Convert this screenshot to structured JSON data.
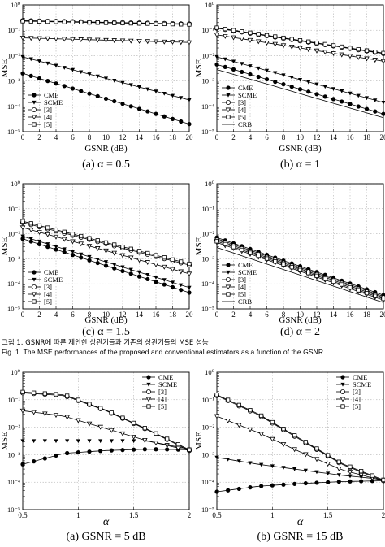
{
  "captions": {
    "fig1_kr": "그림 1. GSNR에 따른 제안한 상관기들과 기존의 상관기들의 MSE 성능",
    "fig1_en": "Fig. 1. The MSE performances of the proposed and conventional estimators as a function of the GSNR"
  },
  "style": {
    "line_color": "#000000",
    "grid_color": "#888888",
    "markers": {
      "CME": "filled-circle",
      "SCME": "filled-triangle-down",
      "[3]": "open-circle",
      "[4]": "open-triangle-down",
      "[5]": "open-square",
      "CRB": "none"
    }
  },
  "chart_data": [
    {
      "type": "line",
      "title": "(a) α = 0.5",
      "xlabel": "GSNR (dB)",
      "ylabel": "MSE",
      "yscale": "log",
      "x": [
        0,
        1,
        2,
        3,
        4,
        5,
        6,
        7,
        8,
        9,
        10,
        11,
        12,
        13,
        14,
        15,
        16,
        17,
        18,
        19,
        20
      ],
      "xticks": [
        0,
        2,
        4,
        6,
        8,
        10,
        12,
        14,
        16,
        18,
        20
      ],
      "xticklabels": [
        "0",
        "2",
        "4",
        "6",
        "8",
        "10",
        "12",
        "14",
        "16",
        "18",
        "20"
      ],
      "xlim": [
        0,
        20
      ],
      "ylim_exp": [
        -5,
        0
      ],
      "yticklabels": [
        "10⁰",
        "10⁻¹",
        "10⁻²",
        "10⁻³",
        "10⁻⁴",
        "10⁻⁵"
      ],
      "grid": true,
      "legend": "lower-left",
      "series": [
        {
          "name": "CME",
          "y_log10": [
            -2.7,
            -4.7
          ]
        },
        {
          "name": "SCME",
          "y_log10": [
            -2.05,
            -3.75
          ]
        },
        {
          "name": "[3]",
          "y_log10": [
            -0.62,
            -0.75
          ]
        },
        {
          "name": "[4]",
          "y_log10": [
            -1.3,
            -1.48
          ]
        },
        {
          "name": "[5]",
          "y_log10": [
            -0.64,
            -0.77
          ]
        }
      ]
    },
    {
      "type": "line",
      "title": "(b) α = 1",
      "xlabel": "GSNR (dB)",
      "ylabel": "MSE",
      "yscale": "log",
      "x": [
        0,
        1,
        2,
        3,
        4,
        5,
        6,
        7,
        8,
        9,
        10,
        11,
        12,
        13,
        14,
        15,
        16,
        17,
        18,
        19,
        20
      ],
      "xticks": [
        0,
        2,
        4,
        6,
        8,
        10,
        12,
        14,
        16,
        18,
        20
      ],
      "xticklabels": [
        "0",
        "2",
        "4",
        "6",
        "8",
        "10",
        "12",
        "14",
        "16",
        "18",
        "20"
      ],
      "xlim": [
        0,
        20
      ],
      "ylim_exp": [
        -5,
        0
      ],
      "yticklabels": [
        "10⁰",
        "10⁻¹",
        "10⁻²",
        "10⁻³",
        "10⁻⁴",
        "10⁻⁵"
      ],
      "grid": true,
      "legend": "lower-left",
      "series": [
        {
          "name": "CME",
          "y_log10": [
            -2.35,
            -4.3
          ]
        },
        {
          "name": "SCME",
          "y_log10": [
            -2.05,
            -3.85
          ]
        },
        {
          "name": "[3]",
          "y_log10": [
            -0.92,
            -1.92
          ]
        },
        {
          "name": "[4]",
          "y_log10": [
            -1.18,
            -2.22
          ]
        },
        {
          "name": "[5]",
          "y_log10": [
            -0.9,
            -1.9
          ]
        },
        {
          "name": "CRB",
          "y_log10": [
            -2.55,
            -4.45
          ]
        }
      ]
    },
    {
      "type": "line",
      "title": "(c) α = 1.5",
      "xlabel": "GSNR (dB)",
      "ylabel": "MSE",
      "yscale": "log",
      "x": [
        0,
        1,
        2,
        3,
        4,
        5,
        6,
        7,
        8,
        9,
        10,
        11,
        12,
        13,
        14,
        15,
        16,
        17,
        18,
        19,
        20
      ],
      "xticks": [
        0,
        2,
        4,
        6,
        8,
        10,
        12,
        14,
        16,
        18,
        20
      ],
      "xticklabels": [
        "0",
        "2",
        "4",
        "6",
        "8",
        "10",
        "12",
        "14",
        "16",
        "18",
        "20"
      ],
      "xlim": [
        0,
        20
      ],
      "ylim_exp": [
        -5,
        0
      ],
      "yticklabels": [
        "10⁰",
        "10⁻¹",
        "10⁻²",
        "10⁻³",
        "10⁻⁴",
        "10⁻⁵"
      ],
      "grid": true,
      "legend": "lower-left",
      "series": [
        {
          "name": "CME",
          "y_log10": [
            -2.2,
            -4.35
          ]
        },
        {
          "name": "SCME",
          "y_log10": [
            -2.1,
            -4.15
          ]
        },
        {
          "name": "[3]",
          "y_log10": [
            -1.55,
            -3.25
          ]
        },
        {
          "name": "[4]",
          "y_log10": [
            -1.75,
            -3.6
          ]
        },
        {
          "name": "[5]",
          "y_log10": [
            -1.5,
            -3.2
          ]
        }
      ]
    },
    {
      "type": "line",
      "title": "(d) α = 2",
      "xlabel": "GSNR (dB)",
      "ylabel": "MSE",
      "yscale": "log",
      "x": [
        0,
        1,
        2,
        3,
        4,
        5,
        6,
        7,
        8,
        9,
        10,
        11,
        12,
        13,
        14,
        15,
        16,
        17,
        18,
        19,
        20
      ],
      "xticks": [
        0,
        2,
        4,
        6,
        8,
        10,
        12,
        14,
        16,
        18,
        20
      ],
      "xticklabels": [
        "0",
        "2",
        "4",
        "6",
        "8",
        "10",
        "12",
        "14",
        "16",
        "18",
        "20"
      ],
      "xlim": [
        0,
        20
      ],
      "ylim_exp": [
        -5,
        0
      ],
      "yticklabels": [
        "10⁰",
        "10⁻¹",
        "10⁻²",
        "10⁻³",
        "10⁻⁴",
        "10⁻⁵"
      ],
      "grid": true,
      "legend": "lower-left",
      "series": [
        {
          "name": "CME",
          "y_log10": [
            -2.15,
            -4.45
          ]
        },
        {
          "name": "SCME",
          "y_log10": [
            -2.2,
            -4.5
          ]
        },
        {
          "name": "[3]",
          "y_log10": [
            -2.25,
            -4.55
          ]
        },
        {
          "name": "[4]",
          "y_log10": [
            -2.35,
            -4.65
          ]
        },
        {
          "name": "[5]",
          "y_log10": [
            -2.3,
            -4.6
          ]
        },
        {
          "name": "CRB",
          "y_log10": [
            -2.55,
            -4.75
          ]
        }
      ]
    },
    {
      "type": "line",
      "title": "(a) GSNR = 5 dB",
      "xlabel": "α",
      "ylabel": "MSE",
      "yscale": "log",
      "x": [
        0.5,
        0.55,
        0.6,
        0.65,
        0.7,
        0.75,
        0.8,
        0.85,
        0.9,
        0.95,
        1.0,
        1.05,
        1.1,
        1.15,
        1.2,
        1.25,
        1.3,
        1.35,
        1.4,
        1.45,
        1.5,
        1.55,
        1.6,
        1.65,
        1.7,
        1.75,
        1.8,
        1.85,
        1.9,
        1.95,
        2.0
      ],
      "xticks": [
        0.5,
        1,
        1.5,
        2
      ],
      "xticklabels": [
        "0.5",
        "1",
        "1.5",
        "2"
      ],
      "xlim": [
        0.5,
        2
      ],
      "ylim_exp": [
        -5,
        0
      ],
      "yticklabels": [
        "10⁰",
        "10⁻¹",
        "10⁻²",
        "10⁻³",
        "10⁻⁴",
        "10⁻⁵"
      ],
      "grid": true,
      "legend": "top-right",
      "series": [
        {
          "name": "CME",
          "y_log10": [
            -3.35,
            -2.95,
            -2.85,
            -2.8,
            -2.82
          ]
        },
        {
          "name": "SCME",
          "y_log10": [
            -2.5,
            -2.5,
            -2.5,
            -2.5,
            -2.8
          ]
        },
        {
          "name": "[3]",
          "y_log10": [
            -0.75,
            -0.85,
            -1.4,
            -2.1,
            -2.85
          ]
        },
        {
          "name": "[4]",
          "y_log10": [
            -1.4,
            -1.6,
            -2.05,
            -2.5,
            -2.85
          ]
        },
        {
          "name": "[5]",
          "y_log10": [
            -0.72,
            -0.82,
            -1.38,
            -2.08,
            -2.82
          ]
        }
      ]
    },
    {
      "type": "line",
      "title": "(b) GSNR = 15 dB",
      "xlabel": "α",
      "ylabel": "MSE",
      "yscale": "log",
      "x": [
        0.5,
        0.55,
        0.6,
        0.65,
        0.7,
        0.75,
        0.8,
        0.85,
        0.9,
        0.95,
        1.0,
        1.05,
        1.1,
        1.15,
        1.2,
        1.25,
        1.3,
        1.35,
        1.4,
        1.45,
        1.5,
        1.55,
        1.6,
        1.65,
        1.7,
        1.75,
        1.8,
        1.85,
        1.9,
        1.95,
        2.0
      ],
      "xticks": [
        0.5,
        1,
        1.5,
        2
      ],
      "xticklabels": [
        "0.5",
        "1",
        "1.5",
        "2"
      ],
      "xlim": [
        0.5,
        2
      ],
      "ylim_exp": [
        -5,
        0
      ],
      "yticklabels": [
        "10⁰",
        "10⁻¹",
        "10⁻²",
        "10⁻³",
        "10⁻⁴",
        "10⁻⁵"
      ],
      "grid": true,
      "legend": "top-right",
      "series": [
        {
          "name": "CME",
          "y_log10": [
            -4.35,
            -4.15,
            -4.05,
            -3.98,
            -3.95
          ]
        },
        {
          "name": "SCME",
          "y_log10": [
            -3.1,
            -3.35,
            -3.55,
            -3.75,
            -3.9
          ]
        },
        {
          "name": "[3]",
          "y_log10": [
            -0.85,
            -1.55,
            -2.45,
            -3.35,
            -3.95
          ]
        },
        {
          "name": "[4]",
          "y_log10": [
            -1.6,
            -2.2,
            -2.9,
            -3.55,
            -3.95
          ]
        },
        {
          "name": "[5]",
          "y_log10": [
            -0.82,
            -1.52,
            -2.42,
            -3.32,
            -3.92
          ]
        }
      ]
    }
  ]
}
